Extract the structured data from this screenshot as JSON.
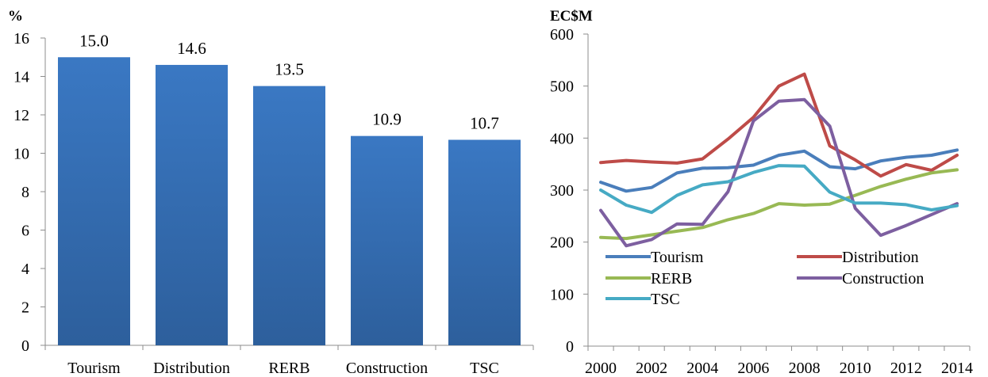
{
  "chart_data": [
    {
      "type": "bar",
      "unit_label": "%",
      "categories": [
        "Tourism",
        "Distribution",
        "RERB",
        "Construction",
        "TSC"
      ],
      "values": [
        15.0,
        14.6,
        13.5,
        10.9,
        10.7
      ],
      "data_labels": [
        "15.0",
        "14.6",
        "13.5",
        "10.9",
        "10.7"
      ],
      "ylim": [
        0,
        16
      ],
      "yticks": [
        0,
        2,
        4,
        6,
        8,
        10,
        12,
        14,
        16
      ],
      "bar_color": "#3a78c3",
      "grid": false,
      "legend": "none"
    },
    {
      "type": "line",
      "unit_label": "EC$M",
      "x": [
        2000,
        2001,
        2002,
        2003,
        2004,
        2005,
        2006,
        2007,
        2008,
        2009,
        2010,
        2011,
        2012,
        2013,
        2014
      ],
      "xticks": [
        2000,
        2002,
        2004,
        2006,
        2008,
        2010,
        2012,
        2014
      ],
      "ylim": [
        0,
        600
      ],
      "yticks": [
        0,
        100,
        200,
        300,
        400,
        500,
        600
      ],
      "grid": false,
      "legend": "bottom-left inside plot, two columns",
      "series": [
        {
          "name": "Tourism",
          "color": "#4a7ebb",
          "values": [
            315,
            298,
            305,
            333,
            342,
            343,
            348,
            367,
            375,
            345,
            341,
            356,
            363,
            367,
            377
          ]
        },
        {
          "name": "Distribution",
          "color": "#be4b48",
          "values": [
            353,
            357,
            354,
            352,
            360,
            398,
            440,
            500,
            523,
            385,
            358,
            327,
            349,
            338,
            367
          ]
        },
        {
          "name": "RERB",
          "color": "#98b954",
          "values": [
            209,
            207,
            214,
            221,
            228,
            243,
            255,
            274,
            271,
            273,
            290,
            307,
            321,
            333,
            339
          ]
        },
        {
          "name": "Construction",
          "color": "#7d5fa0",
          "values": [
            261,
            193,
            205,
            235,
            234,
            297,
            433,
            471,
            474,
            423,
            265,
            213,
            232,
            253,
            274
          ]
        },
        {
          "name": "TSC",
          "color": "#46aac4",
          "values": [
            300,
            271,
            257,
            290,
            310,
            316,
            334,
            347,
            346,
            296,
            275,
            275,
            272,
            262,
            270
          ]
        }
      ]
    }
  ]
}
